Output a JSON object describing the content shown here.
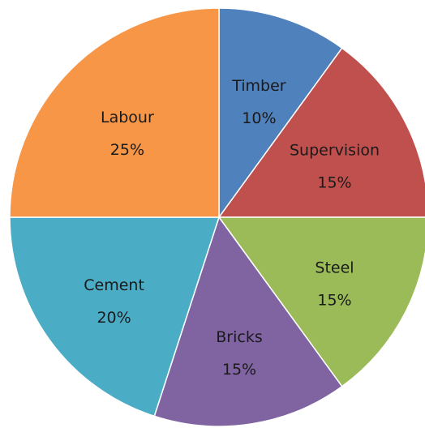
{
  "chart_data": {
    "type": "pie",
    "slices": [
      {
        "label": "Timber",
        "value": 10,
        "value_label": "10%",
        "color": "#4f81bd"
      },
      {
        "label": "Supervision",
        "value": 15,
        "value_label": "15%",
        "color": "#c0504d"
      },
      {
        "label": "Steel",
        "value": 15,
        "value_label": "15%",
        "color": "#9bbb59"
      },
      {
        "label": "Bricks",
        "value": 15,
        "value_label": "15%",
        "color": "#8064a2"
      },
      {
        "label": "Cement",
        "value": 20,
        "value_label": "20%",
        "color": "#4bacc6"
      },
      {
        "label": "Labour",
        "value": 25,
        "value_label": "25%",
        "color": "#f79646"
      }
    ],
    "start_angle_deg": 0,
    "direction": "clockwise",
    "legend": "none"
  }
}
